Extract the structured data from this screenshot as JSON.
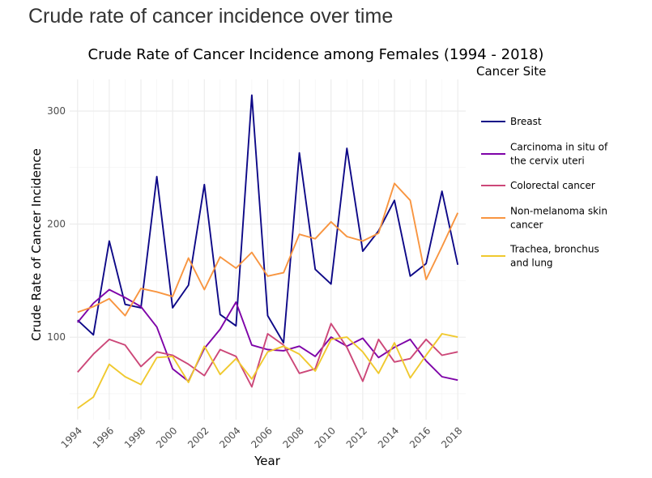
{
  "page": {
    "title": "Crude rate of cancer incidence over time"
  },
  "chart_data": {
    "type": "line",
    "title": "Crude Rate of Cancer Incidence among Females (1994 - 2018)",
    "xlabel": "Year",
    "ylabel": "Crude Rate of Cancer Incidence",
    "xlim": [
      1993.5,
      2018.5
    ],
    "ylim": [
      27,
      328
    ],
    "x_ticks": [
      1994,
      1996,
      1998,
      2000,
      2002,
      2004,
      2006,
      2008,
      2010,
      2012,
      2014,
      2016,
      2018
    ],
    "y_ticks": [
      100,
      200,
      300
    ],
    "grid": true,
    "legend_title": "Cancer Site",
    "legend_position": "right",
    "x": [
      1994,
      1995,
      1996,
      1997,
      1998,
      1999,
      2000,
      2001,
      2002,
      2003,
      2004,
      2005,
      2006,
      2007,
      2008,
      2009,
      2010,
      2011,
      2012,
      2013,
      2014,
      2015,
      2016,
      2017,
      2018
    ],
    "series": [
      {
        "name": "Breast",
        "color": "#0d0887",
        "values": [
          115,
          102,
          185,
          129,
          126,
          242,
          126,
          146,
          235,
          120,
          110,
          314,
          119,
          95,
          263,
          160,
          147,
          267,
          176,
          194,
          221,
          154,
          165,
          229,
          164
        ]
      },
      {
        "name": "Carcinoma in situ of the cervix uteri",
        "color": "#7e03a8",
        "values": [
          113,
          130,
          142,
          135,
          127,
          109,
          72,
          61,
          90,
          107,
          131,
          93,
          89,
          88,
          92,
          83,
          100,
          92,
          99,
          82,
          91,
          98,
          79,
          65,
          62
        ]
      },
      {
        "name": "Colorectal cancer",
        "color": "#cc4778",
        "values": [
          69,
          85,
          98,
          93,
          74,
          87,
          84,
          76,
          66,
          89,
          83,
          56,
          103,
          93,
          68,
          72,
          112,
          91,
          61,
          98,
          78,
          81,
          98,
          84,
          87
        ]
      },
      {
        "name": "Non-melanoma skin cancer",
        "color": "#f89540",
        "values": [
          122,
          127,
          134,
          119,
          143,
          140,
          136,
          170,
          142,
          171,
          161,
          175,
          154,
          157,
          191,
          187,
          202,
          189,
          185,
          192,
          236,
          221,
          151,
          180,
          210
        ]
      },
      {
        "name": "Trachea, bronchus and lung",
        "color": "#f0c92e",
        "values": [
          37,
          47,
          76,
          65,
          58,
          82,
          83,
          60,
          92,
          67,
          81,
          63,
          87,
          92,
          85,
          70,
          98,
          100,
          87,
          68,
          95,
          64,
          84,
          103,
          100
        ]
      }
    ],
    "legend_lines": [
      [
        "Breast"
      ],
      [
        "Carcinoma in situ of",
        "the cervix uteri"
      ],
      [
        "Colorectal cancer"
      ],
      [
        "Non-melanoma skin",
        "cancer"
      ],
      [
        "Trachea, bronchus",
        "and lung"
      ]
    ]
  }
}
